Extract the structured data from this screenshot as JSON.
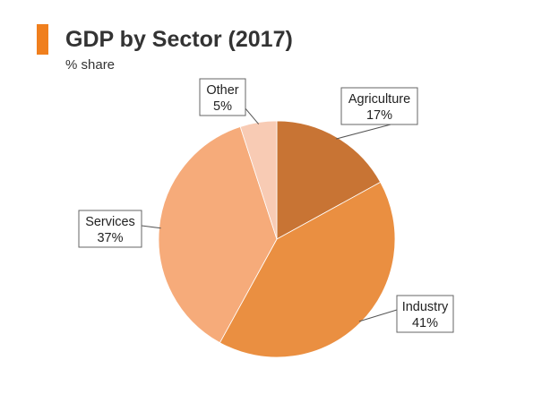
{
  "title": "GDP by Sector (2017)",
  "subtitle": "% share",
  "colors": {
    "accent": "#f07f1d",
    "title_text": "#333333"
  },
  "chart_data": {
    "type": "pie",
    "start_angle_deg": 0,
    "direction": "clockwise",
    "slices": [
      {
        "name": "Agriculture",
        "value": 17,
        "label": "17%",
        "color": "#c87434"
      },
      {
        "name": "Industry",
        "value": 41,
        "label": "41%",
        "color": "#ea8f41"
      },
      {
        "name": "Services",
        "value": 37,
        "label": "37%",
        "color": "#f6ab7a"
      },
      {
        "name": "Other",
        "value": 5,
        "label": "5%",
        "color": "#f8cbb4"
      }
    ]
  }
}
